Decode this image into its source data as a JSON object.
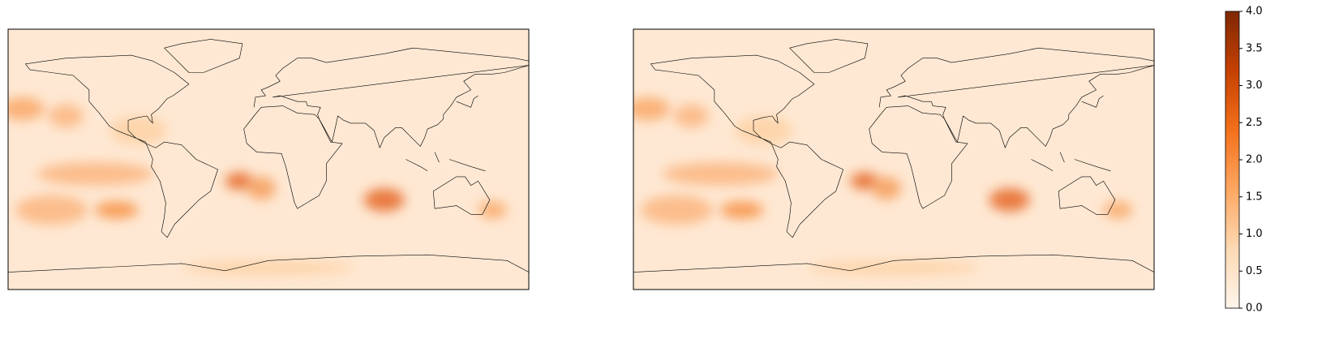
{
  "colorbar": {
    "cmap_colors": [
      "#fff5eb",
      "#fdd9b4",
      "#fda762",
      "#f3701b",
      "#c54102",
      "#7f2704"
    ],
    "lim": [
      0,
      4
    ],
    "ticks": [
      {
        "value": 0,
        "label": "0.0"
      },
      {
        "value": 0.5,
        "label": "0.5"
      },
      {
        "value": 1,
        "label": "1.0"
      },
      {
        "value": 1.5,
        "label": "1.5"
      },
      {
        "value": 2,
        "label": "2.0"
      },
      {
        "value": 2.5,
        "label": "2.5"
      },
      {
        "value": 3,
        "label": "3.0"
      },
      {
        "value": 3.5,
        "label": "3.5"
      },
      {
        "value": 4,
        "label": "4.0"
      }
    ]
  }
}
